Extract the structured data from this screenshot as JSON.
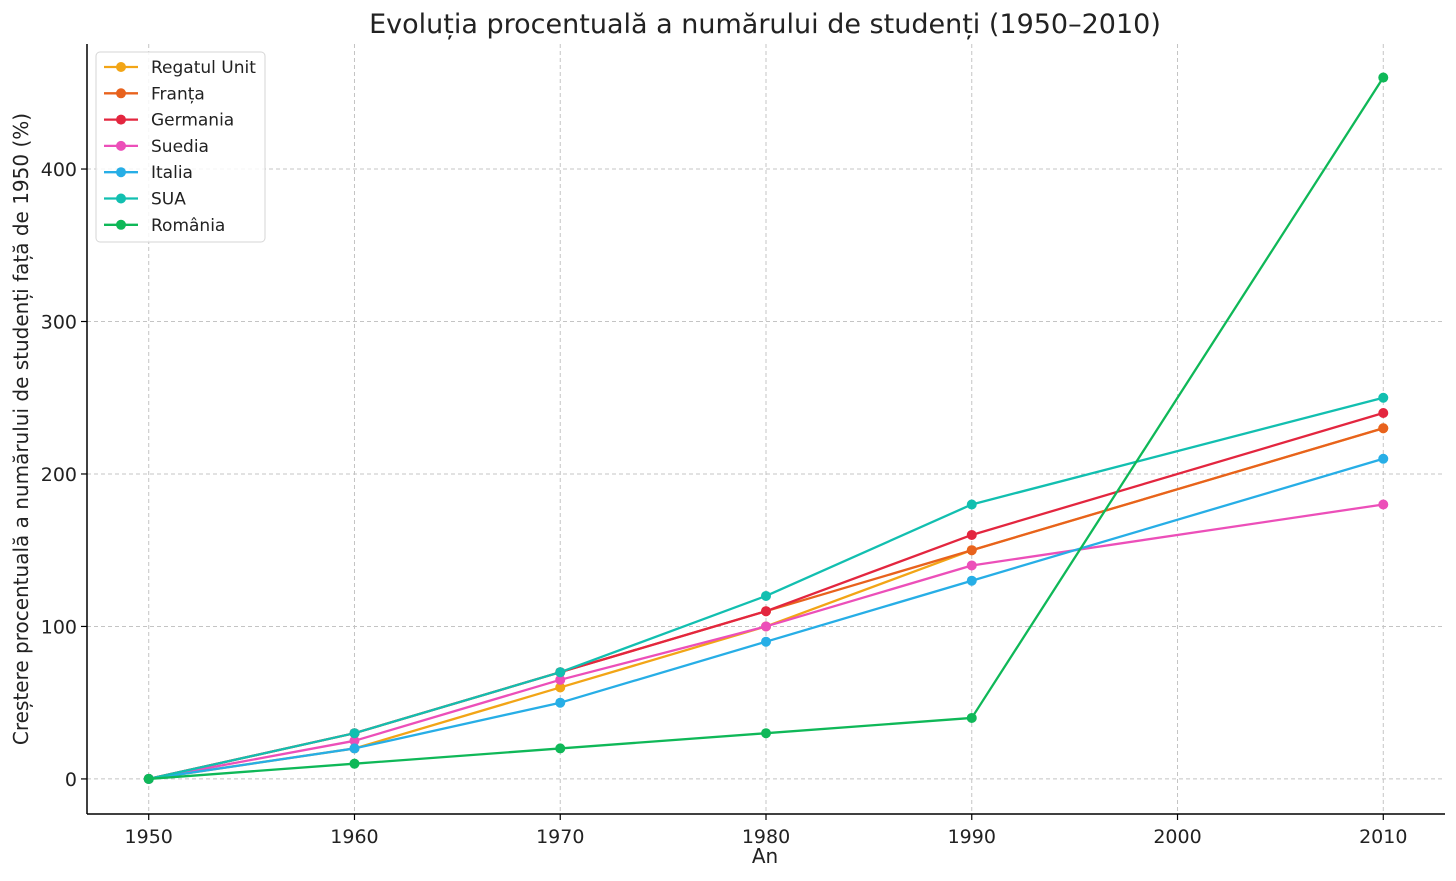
{
  "chart_data": {
    "type": "line",
    "title": "Evoluția procentuală a numărului de studenți (1950–2010)",
    "xlabel": "An",
    "ylabel": "Creștere procentuală a numărului de studenți față de 1950 (%)",
    "x": [
      1950,
      1960,
      1970,
      1980,
      1990,
      2010
    ],
    "xticks": [
      1950,
      1960,
      1970,
      1980,
      1990,
      2000,
      2010
    ],
    "yticks": [
      0,
      100,
      200,
      300,
      400
    ],
    "xlim": [
      1947,
      2013
    ],
    "ylim": [
      -23,
      482
    ],
    "grid": true,
    "legend_position": "top-left",
    "series": [
      {
        "name": "Regatul Unit",
        "color": "#f2a516",
        "values": [
          0,
          20,
          60,
          100,
          150,
          230
        ]
      },
      {
        "name": "Franța",
        "color": "#e8621d",
        "values": [
          0,
          30,
          70,
          110,
          150,
          230
        ]
      },
      {
        "name": "Germania",
        "color": "#e3263f",
        "values": [
          0,
          30,
          70,
          110,
          160,
          240
        ]
      },
      {
        "name": "Suedia",
        "color": "#ec4fb9",
        "values": [
          0,
          25,
          65,
          100,
          140,
          180
        ]
      },
      {
        "name": "Italia",
        "color": "#27aee6",
        "values": [
          0,
          20,
          50,
          90,
          130,
          210
        ]
      },
      {
        "name": "SUA",
        "color": "#12bfb0",
        "values": [
          0,
          30,
          70,
          120,
          180,
          250
        ]
      },
      {
        "name": "România",
        "color": "#0fb858",
        "values": [
          0,
          10,
          20,
          30,
          40,
          460
        ]
      }
    ]
  }
}
